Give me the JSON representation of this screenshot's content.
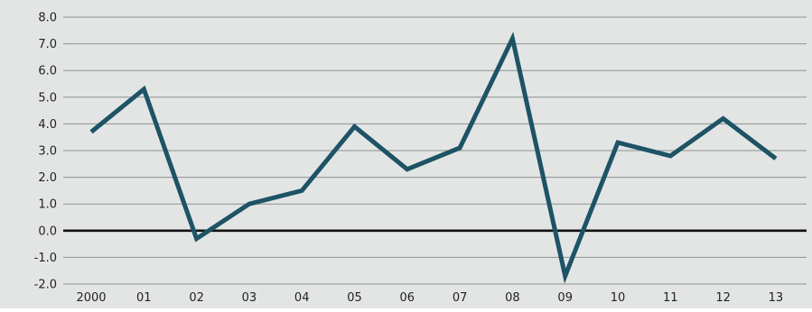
{
  "chart_data": {
    "type": "line",
    "title": "",
    "xlabel": "",
    "ylabel": "",
    "categories": [
      "2000",
      "01",
      "02",
      "03",
      "04",
      "05",
      "06",
      "07",
      "08",
      "09",
      "10",
      "11",
      "12",
      "13"
    ],
    "series": [
      {
        "values": [
          3.7,
          5.3,
          -0.3,
          1.0,
          1.5,
          3.9,
          2.3,
          3.1,
          7.2,
          -1.7,
          3.3,
          2.8,
          4.2,
          2.7
        ]
      }
    ],
    "ylim": [
      -2.0,
      8.0
    ],
    "yticks": [
      "-2.0",
      "-1.0",
      "0.0",
      "1.0",
      "2.0",
      "3.0",
      "4.0",
      "5.0",
      "6.0",
      "7.0",
      "8.0"
    ],
    "grid": true,
    "legend": "none",
    "colors": {
      "plot_background": "#e3e5e4",
      "line": "#1e5366",
      "gridline": "#8d9192",
      "zero_line": "#111111"
    }
  }
}
